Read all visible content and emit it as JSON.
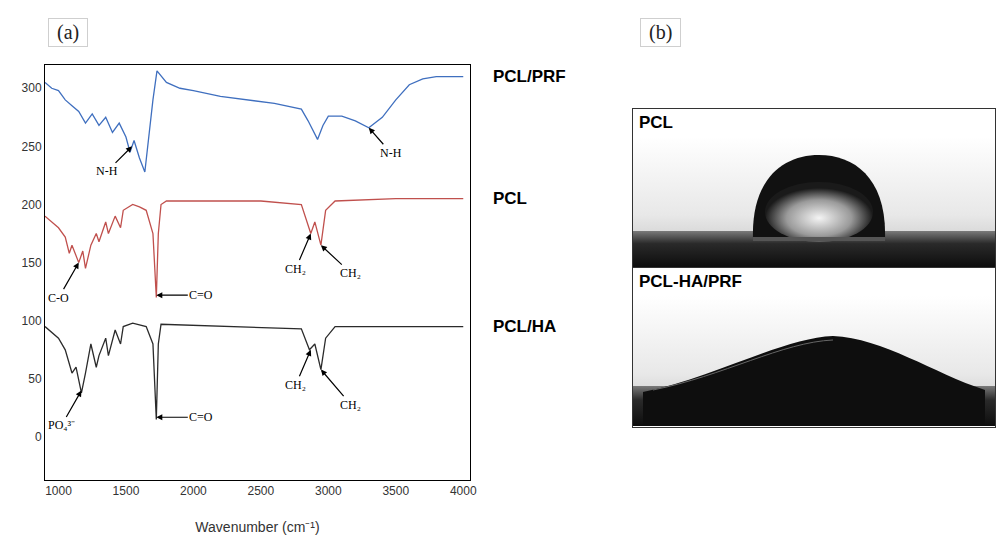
{
  "chart_data": {
    "type": "line",
    "panel": "(a)",
    "x_label": "Wavenumber (cm⁻¹)",
    "xlim": [
      900,
      4050
    ],
    "xticks": [
      1000,
      1500,
      2000,
      2500,
      3000,
      3500,
      4000
    ],
    "ylim": [
      -37,
      320
    ],
    "yticks": [
      0,
      50,
      100,
      150,
      200,
      250,
      300
    ],
    "grid": false,
    "series": [
      {
        "name": "PCL/PRF",
        "color": "#3f6fbf",
        "x": [
          900,
          950,
          1000,
          1050,
          1100,
          1150,
          1200,
          1250,
          1300,
          1350,
          1400,
          1450,
          1500,
          1530,
          1560,
          1600,
          1640,
          1660,
          1700,
          1730,
          1800,
          1900,
          2000,
          2200,
          2400,
          2600,
          2800,
          2850,
          2920,
          2960,
          3000,
          3100,
          3200,
          3300,
          3400,
          3500,
          3600,
          3700,
          3800,
          4000
        ],
        "values": [
          305,
          300,
          298,
          290,
          285,
          280,
          270,
          278,
          268,
          275,
          262,
          270,
          258,
          245,
          255,
          240,
          228,
          250,
          290,
          315,
          305,
          300,
          298,
          293,
          290,
          287,
          282,
          272,
          256,
          268,
          276,
          276,
          272,
          266,
          275,
          290,
          303,
          308,
          310,
          310
        ]
      },
      {
        "name": "PCL",
        "color": "#c0504d",
        "x": [
          900,
          950,
          1000,
          1050,
          1080,
          1100,
          1150,
          1180,
          1200,
          1240,
          1280,
          1300,
          1350,
          1370,
          1420,
          1460,
          1480,
          1550,
          1600,
          1650,
          1700,
          1725,
          1740,
          1760,
          1800,
          2000,
          2500,
          2800,
          2860,
          2870,
          2900,
          2945,
          2980,
          3050,
          3500,
          4000
        ],
        "values": [
          190,
          185,
          180,
          172,
          158,
          165,
          150,
          160,
          145,
          165,
          175,
          168,
          185,
          175,
          190,
          180,
          195,
          200,
          198,
          195,
          175,
          120,
          175,
          200,
          203,
          203,
          203,
          200,
          180,
          175,
          185,
          165,
          195,
          203,
          205,
          205
        ]
      },
      {
        "name": "PCL/HA",
        "color": "#2b2b2b",
        "x": [
          900,
          950,
          1000,
          1050,
          1100,
          1130,
          1170,
          1200,
          1240,
          1280,
          1300,
          1350,
          1370,
          1420,
          1460,
          1480,
          1550,
          1650,
          1700,
          1725,
          1740,
          1760,
          2000,
          2800,
          2860,
          2900,
          2945,
          2980,
          3050,
          4000
        ],
        "values": [
          95,
          90,
          85,
          75,
          55,
          60,
          38,
          55,
          80,
          60,
          70,
          85,
          70,
          92,
          80,
          95,
          98,
          95,
          80,
          15,
          80,
          97,
          96,
          93,
          75,
          80,
          58,
          85,
          95,
          95
        ]
      }
    ],
    "annotations": [
      {
        "text": "N-H",
        "x": 1545,
        "y": 250
      },
      {
        "text": "N-H",
        "x": 3300,
        "y": 266
      },
      {
        "text": "C-O",
        "x": 1150,
        "y": 150
      },
      {
        "text": "C=O",
        "x": 1725,
        "y": 122
      },
      {
        "text": "CH₂",
        "x": 2870,
        "y": 175
      },
      {
        "text": "CH₂",
        "x": 2945,
        "y": 165
      },
      {
        "text": "PO₄³⁻",
        "x": 1170,
        "y": 40
      },
      {
        "text": "C=O",
        "x": 1725,
        "y": 17
      },
      {
        "text": "CH₂",
        "x": 2870,
        "y": 75
      },
      {
        "text": "CH₂",
        "x": 2945,
        "y": 58
      }
    ]
  },
  "photos": {
    "panel": "(b)",
    "images": [
      {
        "label": "PCL"
      },
      {
        "label": "PCL-HA/PRF"
      }
    ]
  }
}
